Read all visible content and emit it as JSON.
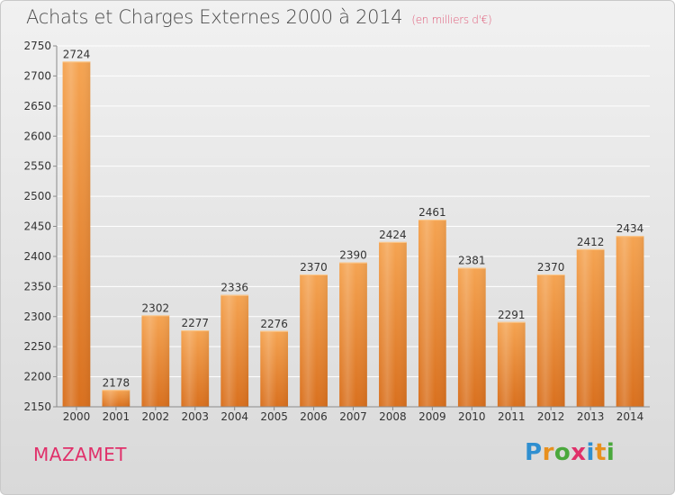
{
  "header": {
    "title": "Achats et Charges Externes 2000 à 2014",
    "subtitle": "(en milliers d'€)"
  },
  "footer": {
    "city": "MAZAMET",
    "logo_text": "Proxiti",
    "logo_letters": [
      {
        "ch": "P",
        "color": "#2f8fd0"
      },
      {
        "ch": "r",
        "color": "#e8901e"
      },
      {
        "ch": "o",
        "color": "#4aa83c"
      },
      {
        "ch": "x",
        "color": "#e0306a"
      },
      {
        "ch": "i",
        "color": "#2f8fd0"
      },
      {
        "ch": "t",
        "color": "#e8901e"
      },
      {
        "ch": "i",
        "color": "#4aa83c"
      }
    ]
  },
  "colors": {
    "bar_top": "#f5a452",
    "bar_bottom": "#d9701e",
    "grid": "#ffffff",
    "axis": "#8a8a8a"
  },
  "chart_data": {
    "type": "bar",
    "title": "Achats et Charges Externes 2000 à 2014",
    "subtitle": "(en milliers d'€)",
    "categories": [
      "2000",
      "2001",
      "2002",
      "2003",
      "2004",
      "2005",
      "2006",
      "2007",
      "2008",
      "2009",
      "2010",
      "2011",
      "2012",
      "2013",
      "2014"
    ],
    "values": [
      2724,
      2178,
      2302,
      2277,
      2336,
      2276,
      2370,
      2390,
      2424,
      2461,
      2381,
      2291,
      2370,
      2412,
      2434
    ],
    "ylim": [
      2150,
      2750
    ],
    "yticks": [
      2150,
      2200,
      2250,
      2300,
      2350,
      2400,
      2450,
      2500,
      2550,
      2600,
      2650,
      2700,
      2750
    ],
    "grid": true,
    "xlabel": "",
    "ylabel": ""
  }
}
